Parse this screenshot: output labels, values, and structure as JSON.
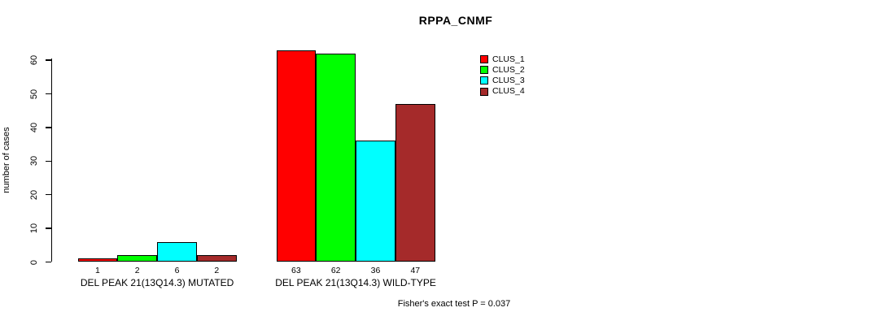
{
  "title": "RPPA_CNMF",
  "chart_data": {
    "type": "bar",
    "title": "RPPA_CNMF",
    "xlabel": "",
    "ylabel": "number of cases",
    "ylim": [
      0,
      65
    ],
    "yticks": [
      0,
      10,
      20,
      30,
      40,
      50,
      60
    ],
    "grid": false,
    "legend_position": "top-right",
    "categories": [
      "DEL PEAK 21(13Q14.3) MUTATED",
      "DEL PEAK 21(13Q14.3) WILD-TYPE"
    ],
    "series": [
      {
        "name": "CLUS_1",
        "color": "#ff0000",
        "values": [
          1,
          63
        ]
      },
      {
        "name": "CLUS_2",
        "color": "#00ff00",
        "values": [
          2,
          62
        ]
      },
      {
        "name": "CLUS_3",
        "color": "#00ffff",
        "values": [
          6,
          36
        ]
      },
      {
        "name": "CLUS_4",
        "color": "#a52a2a",
        "values": [
          2,
          47
        ]
      }
    ],
    "bar_value_labels": [
      [
        1,
        2,
        6,
        2
      ],
      [
        63,
        62,
        36,
        47
      ]
    ],
    "annotation": "Fisher's exact test P = 0.037"
  }
}
